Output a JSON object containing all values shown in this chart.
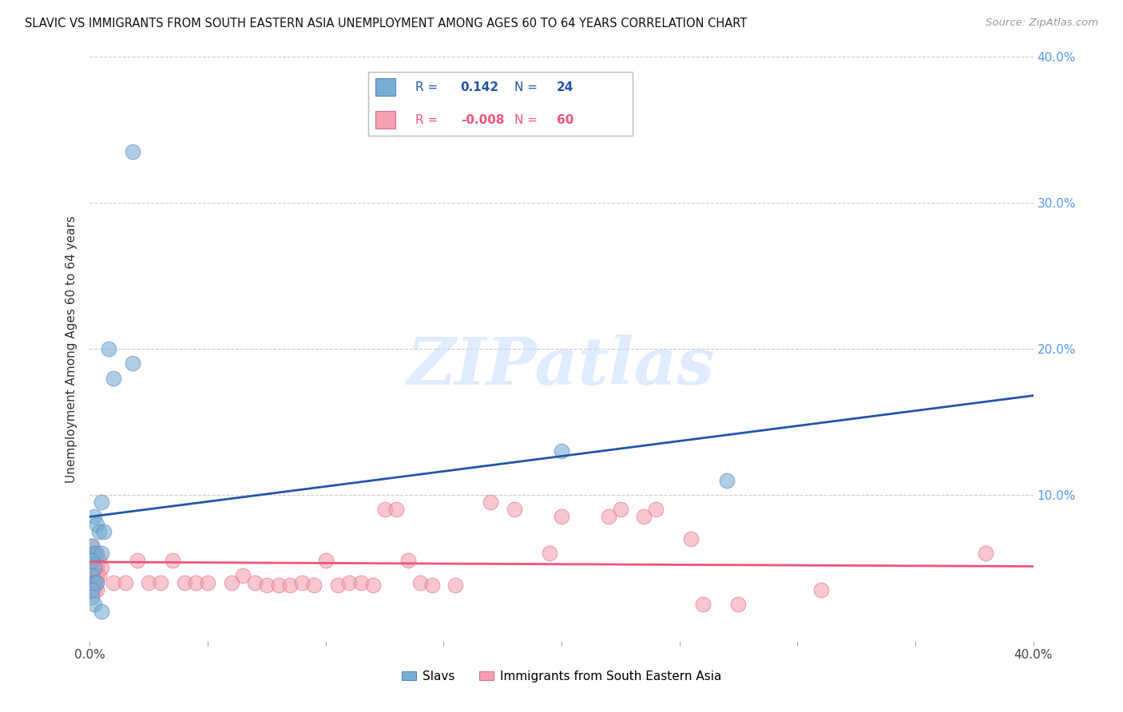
{
  "title": "SLAVIC VS IMMIGRANTS FROM SOUTH EASTERN ASIA UNEMPLOYMENT AMONG AGES 60 TO 64 YEARS CORRELATION CHART",
  "source": "Source: ZipAtlas.com",
  "ylabel": "Unemployment Among Ages 60 to 64 years",
  "xlim": [
    0,
    0.4
  ],
  "ylim": [
    0,
    0.4
  ],
  "xtick_positions": [
    0.0,
    0.05,
    0.1,
    0.15,
    0.2,
    0.25,
    0.3,
    0.35,
    0.4
  ],
  "xtick_labels": [
    "0.0%",
    "",
    "",
    "",
    "",
    "",
    "",
    "",
    "40.0%"
  ],
  "ytick_positions": [
    0.0,
    0.1,
    0.2,
    0.3,
    0.4
  ],
  "ytick_labels_right": [
    "",
    "10.0%",
    "20.0%",
    "30.0%",
    "40.0%"
  ],
  "blue_R": "0.142",
  "blue_N": "24",
  "pink_R": "-0.008",
  "pink_N": "60",
  "blue_scatter_color": "#7AADD4",
  "blue_scatter_edge": "#5588BB",
  "pink_scatter_color": "#F4A0B0",
  "pink_scatter_edge": "#E07090",
  "blue_line_color": "#2255AA",
  "pink_line_color": "#EE5577",
  "blue_line_y0": 0.085,
  "blue_line_y1": 0.168,
  "pink_line_y0": 0.054,
  "pink_line_y1": 0.051,
  "watermark_text": "ZIPatlas",
  "legend_label_blue": "Slavs",
  "legend_label_pink": "Immigrants from South Eastern Asia",
  "blue_points": [
    [
      0.018,
      0.335
    ],
    [
      0.005,
      0.095
    ],
    [
      0.008,
      0.2
    ],
    [
      0.01,
      0.18
    ],
    [
      0.018,
      0.19
    ],
    [
      0.002,
      0.085
    ],
    [
      0.003,
      0.08
    ],
    [
      0.004,
      0.075
    ],
    [
      0.006,
      0.075
    ],
    [
      0.001,
      0.065
    ],
    [
      0.002,
      0.06
    ],
    [
      0.003,
      0.06
    ],
    [
      0.005,
      0.06
    ],
    [
      0.001,
      0.055
    ],
    [
      0.002,
      0.05
    ],
    [
      0.001,
      0.045
    ],
    [
      0.002,
      0.04
    ],
    [
      0.003,
      0.04
    ],
    [
      0.001,
      0.035
    ],
    [
      0.001,
      0.03
    ],
    [
      0.002,
      0.025
    ],
    [
      0.2,
      0.13
    ],
    [
      0.27,
      0.11
    ],
    [
      0.005,
      0.02
    ]
  ],
  "pink_points": [
    [
      0.001,
      0.065
    ],
    [
      0.002,
      0.06
    ],
    [
      0.003,
      0.058
    ],
    [
      0.001,
      0.055
    ],
    [
      0.004,
      0.055
    ],
    [
      0.001,
      0.05
    ],
    [
      0.002,
      0.05
    ],
    [
      0.003,
      0.05
    ],
    [
      0.005,
      0.05
    ],
    [
      0.001,
      0.045
    ],
    [
      0.002,
      0.045
    ],
    [
      0.003,
      0.045
    ],
    [
      0.004,
      0.045
    ],
    [
      0.001,
      0.04
    ],
    [
      0.002,
      0.04
    ],
    [
      0.003,
      0.04
    ],
    [
      0.001,
      0.035
    ],
    [
      0.002,
      0.035
    ],
    [
      0.003,
      0.035
    ],
    [
      0.01,
      0.04
    ],
    [
      0.015,
      0.04
    ],
    [
      0.02,
      0.055
    ],
    [
      0.025,
      0.04
    ],
    [
      0.03,
      0.04
    ],
    [
      0.035,
      0.055
    ],
    [
      0.04,
      0.04
    ],
    [
      0.045,
      0.04
    ],
    [
      0.05,
      0.04
    ],
    [
      0.06,
      0.04
    ],
    [
      0.065,
      0.045
    ],
    [
      0.07,
      0.04
    ],
    [
      0.075,
      0.038
    ],
    [
      0.08,
      0.038
    ],
    [
      0.085,
      0.038
    ],
    [
      0.09,
      0.04
    ],
    [
      0.095,
      0.038
    ],
    [
      0.1,
      0.055
    ],
    [
      0.105,
      0.038
    ],
    [
      0.11,
      0.04
    ],
    [
      0.115,
      0.04
    ],
    [
      0.12,
      0.038
    ],
    [
      0.125,
      0.09
    ],
    [
      0.13,
      0.09
    ],
    [
      0.135,
      0.055
    ],
    [
      0.14,
      0.04
    ],
    [
      0.145,
      0.038
    ],
    [
      0.155,
      0.038
    ],
    [
      0.17,
      0.095
    ],
    [
      0.18,
      0.09
    ],
    [
      0.195,
      0.06
    ],
    [
      0.2,
      0.085
    ],
    [
      0.22,
      0.085
    ],
    [
      0.225,
      0.09
    ],
    [
      0.235,
      0.085
    ],
    [
      0.24,
      0.09
    ],
    [
      0.255,
      0.07
    ],
    [
      0.26,
      0.025
    ],
    [
      0.275,
      0.025
    ],
    [
      0.31,
      0.035
    ],
    [
      0.38,
      0.06
    ]
  ]
}
